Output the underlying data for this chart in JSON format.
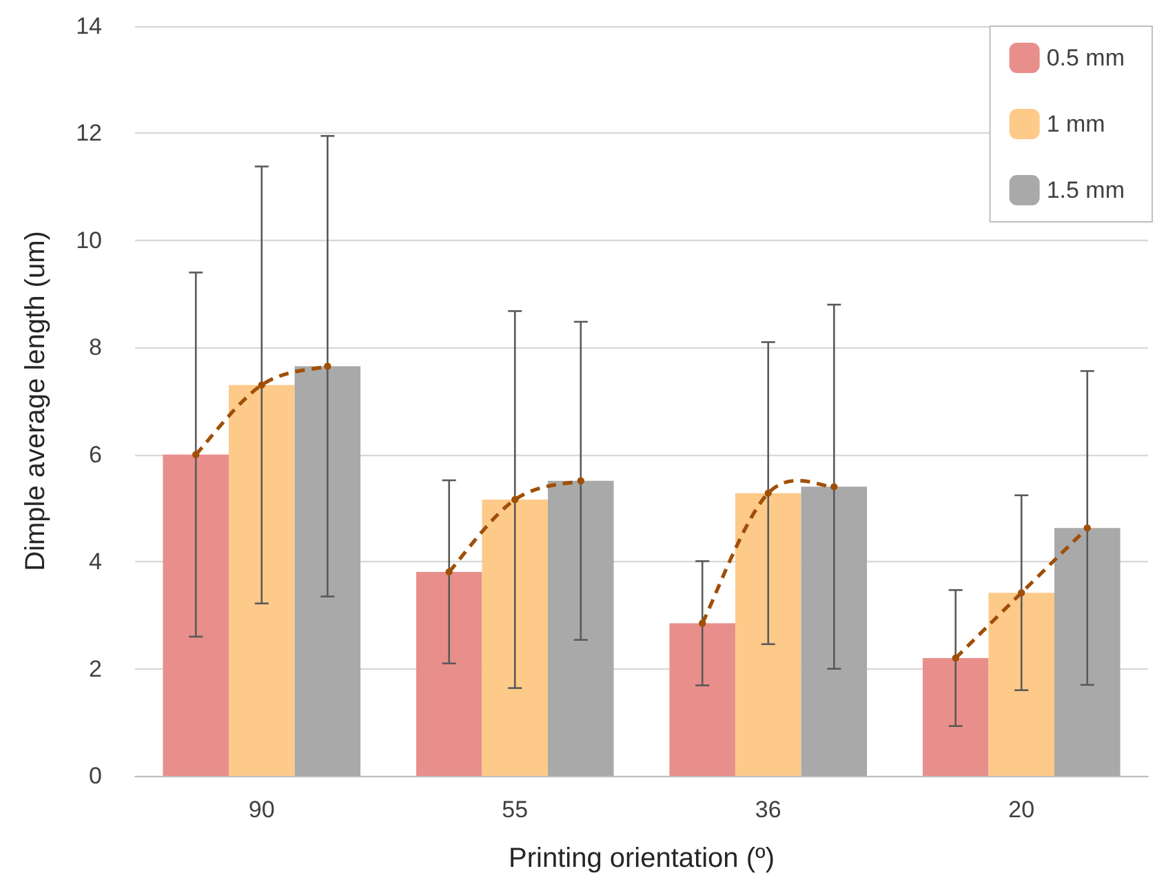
{
  "chart_data": {
    "type": "bar",
    "xlabel": "Printing orientation (º)",
    "ylabel": "Dimple average length (um)",
    "categories": [
      "90",
      "55",
      "36",
      "20"
    ],
    "series": [
      {
        "name": "0.5 mm",
        "color": "#e88f8b",
        "values": [
          6.0,
          3.81,
          2.85,
          2.2
        ],
        "errors": [
          3.4,
          1.71,
          1.16,
          1.27
        ]
      },
      {
        "name": "1 mm",
        "color": "#fdca8a",
        "values": [
          7.3,
          5.16,
          5.28,
          3.42
        ],
        "errors": [
          4.08,
          3.52,
          2.82,
          1.82
        ]
      },
      {
        "name": "1.5 mm",
        "color": "#a9a9a9",
        "values": [
          7.65,
          5.51,
          5.4,
          4.63
        ],
        "errors": [
          4.3,
          2.97,
          3.4,
          2.93
        ]
      }
    ],
    "ylim": [
      0,
      14
    ],
    "yticks": [
      0,
      2,
      4,
      6,
      8,
      10,
      12,
      14
    ],
    "grid": "y",
    "legend": "top right"
  }
}
